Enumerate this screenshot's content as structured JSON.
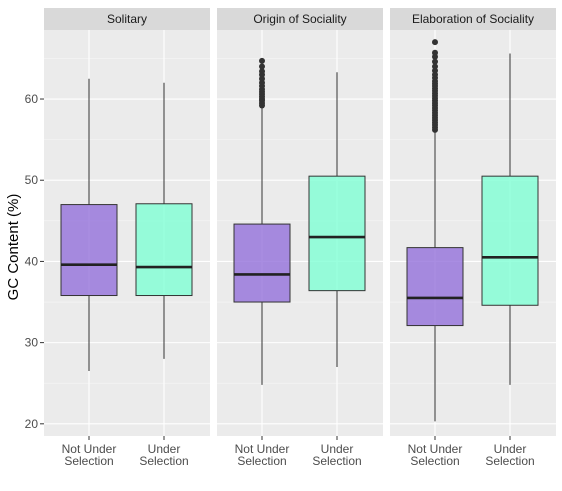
{
  "chart_data": {
    "type": "boxplot",
    "ylabel": "GC Content (%)",
    "xlabel": "",
    "ylim": [
      18.5,
      68.5
    ],
    "yticks": [
      20,
      30,
      40,
      50,
      60
    ],
    "categories": [
      "Not Under\nSelection",
      "Under\nSelection"
    ],
    "colors": {
      "Not Under Selection": "#9370DB",
      "Under Selection": "#7FFFD4"
    },
    "panels": [
      {
        "title": "Solitary",
        "boxes": [
          {
            "category": "Not Under Selection",
            "min": 26.5,
            "q1": 35.8,
            "median": 39.6,
            "q3": 47.0,
            "max": 62.5,
            "outliers": []
          },
          {
            "category": "Under Selection",
            "min": 28.0,
            "q1": 35.8,
            "median": 39.3,
            "q3": 47.1,
            "max": 62.0,
            "outliers": []
          }
        ]
      },
      {
        "title": "Origin of Sociality",
        "boxes": [
          {
            "category": "Not Under Selection",
            "min": 24.8,
            "q1": 35.0,
            "median": 38.4,
            "q3": 44.6,
            "max": 59.0,
            "outliers": [
              59.2,
              59.5,
              59.8,
              60.0,
              60.3,
              60.6,
              60.9,
              61.2,
              61.6,
              62.0,
              62.5,
              63.0,
              63.4,
              64.0,
              64.7
            ]
          },
          {
            "category": "Under Selection",
            "min": 27.0,
            "q1": 36.4,
            "median": 43.0,
            "q3": 50.5,
            "max": 63.3,
            "outliers": []
          }
        ]
      },
      {
        "title": "Elaboration of Sociality",
        "boxes": [
          {
            "category": "Not Under Selection",
            "min": 20.3,
            "q1": 32.1,
            "median": 35.5,
            "q3": 41.7,
            "max": 56.0,
            "outliers": [
              56.2,
              56.5,
              56.8,
              57.1,
              57.4,
              57.7,
              58.0,
              58.3,
              58.6,
              58.9,
              59.2,
              59.5,
              59.8,
              60.1,
              60.4,
              60.7,
              61.0,
              61.3,
              61.6,
              61.9,
              62.2,
              62.6,
              63.0,
              63.5,
              64.0,
              64.6,
              65.2,
              65.7,
              67.0
            ]
          },
          {
            "category": "Under Selection",
            "min": 24.8,
            "q1": 34.6,
            "median": 40.5,
            "q3": 50.5,
            "max": 65.6,
            "outliers": []
          }
        ]
      }
    ]
  }
}
